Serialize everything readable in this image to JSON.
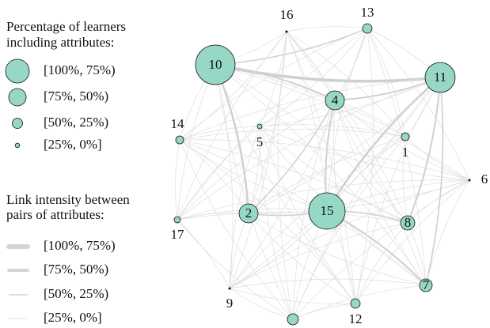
{
  "legend_nodes": {
    "title_lines": [
      "Percentage of learners",
      "including attributes:"
    ],
    "entries": [
      "[100%, 75%)",
      "[75%, 50%)",
      "[50%, 25%)",
      "[25%, 0%]"
    ]
  },
  "legend_links": {
    "title_lines": [
      "Link intensity between",
      "pairs of attributes:"
    ],
    "entries": [
      "[100%, 75%)",
      "[75%, 50%)",
      "[50%, 25%)",
      "[25%, 0%]"
    ]
  },
  "nodes": [
    {
      "label": "1"
    },
    {
      "label": "2"
    },
    {
      "label": "4"
    },
    {
      "label": "5"
    },
    {
      "label": "6"
    },
    {
      "label": "7"
    },
    {
      "label": "8"
    },
    {
      "label": "9"
    },
    {
      "label": "10"
    },
    {
      "label": "11"
    },
    {
      "label": "12"
    },
    {
      "label": "13"
    },
    {
      "label": "14"
    },
    {
      "label": "15"
    },
    {
      "label": "16"
    },
    {
      "label": "17"
    }
  ]
}
